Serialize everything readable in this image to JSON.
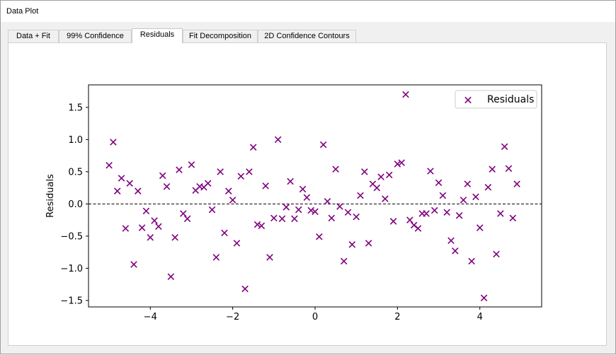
{
  "window": {
    "title": "Data Plot"
  },
  "tabs": [
    {
      "label": "Data + Fit",
      "active": false
    },
    {
      "label": "99% Confidence",
      "active": false
    },
    {
      "label": "Residuals",
      "active": true
    },
    {
      "label": "Fit Decomposition",
      "active": false
    },
    {
      "label": "2D Confidence Contours",
      "active": false
    }
  ],
  "colors": {
    "marker": "#800080",
    "accent": "#ffffff"
  },
  "chart_data": {
    "type": "scatter",
    "ylabel": "Residuals",
    "xlabel": "",
    "xlim": [
      -5.5,
      5.5
    ],
    "ylim": [
      -1.6,
      1.85
    ],
    "xticks": [
      -4,
      -2,
      0,
      2,
      4
    ],
    "xtick_labels": [
      "−4",
      "−2",
      "0",
      "2",
      "4"
    ],
    "yticks": [
      -1.5,
      -1.0,
      -0.5,
      0.0,
      0.5,
      1.0,
      1.5
    ],
    "ytick_labels": [
      "−1.5",
      "−1.0",
      "−0.5",
      "0.0",
      "0.5",
      "1.0",
      "1.5"
    ],
    "reference_line": {
      "y": 0,
      "style": "dashed"
    },
    "legend": {
      "position": "top-right",
      "entries": [
        "Residuals"
      ]
    },
    "grid": false,
    "series": [
      {
        "name": "Residuals",
        "marker": "x",
        "points": [
          [
            -5.0,
            0.6
          ],
          [
            -4.9,
            0.96
          ],
          [
            -4.8,
            0.2
          ],
          [
            -4.7,
            0.4
          ],
          [
            -4.6,
            -0.38
          ],
          [
            -4.5,
            0.32
          ],
          [
            -4.4,
            -0.94
          ],
          [
            -4.3,
            0.2
          ],
          [
            -4.2,
            -0.37
          ],
          [
            -4.1,
            -0.11
          ],
          [
            -4.0,
            -0.52
          ],
          [
            -3.9,
            -0.26
          ],
          [
            -3.8,
            -0.35
          ],
          [
            -3.7,
            0.44
          ],
          [
            -3.6,
            0.27
          ],
          [
            -3.5,
            -1.13
          ],
          [
            -3.4,
            -0.52
          ],
          [
            -3.3,
            0.53
          ],
          [
            -3.2,
            -0.15
          ],
          [
            -3.1,
            -0.23
          ],
          [
            -3.0,
            0.61
          ],
          [
            -2.9,
            0.21
          ],
          [
            -2.8,
            0.27
          ],
          [
            -2.7,
            0.26
          ],
          [
            -2.6,
            0.32
          ],
          [
            -2.5,
            -0.09
          ],
          [
            -2.4,
            -0.83
          ],
          [
            -2.3,
            0.5
          ],
          [
            -2.2,
            -0.45
          ],
          [
            -2.1,
            0.2
          ],
          [
            -2.0,
            0.06
          ],
          [
            -1.9,
            -0.61
          ],
          [
            -1.8,
            0.43
          ],
          [
            -1.7,
            -1.32
          ],
          [
            -1.6,
            0.5
          ],
          [
            -1.5,
            0.88
          ],
          [
            -1.4,
            -0.32
          ],
          [
            -1.3,
            -0.34
          ],
          [
            -1.2,
            0.28
          ],
          [
            -1.1,
            -0.83
          ],
          [
            -1.0,
            -0.22
          ],
          [
            -0.9,
            1.0
          ],
          [
            -0.8,
            -0.23
          ],
          [
            -0.7,
            -0.05
          ],
          [
            -0.6,
            0.35
          ],
          [
            -0.5,
            -0.23
          ],
          [
            -0.4,
            -0.09
          ],
          [
            -0.3,
            0.23
          ],
          [
            -0.2,
            0.1
          ],
          [
            -0.1,
            -0.1
          ],
          [
            0.0,
            -0.12
          ],
          [
            0.1,
            -0.51
          ],
          [
            0.2,
            0.92
          ],
          [
            0.3,
            0.04
          ],
          [
            0.4,
            -0.22
          ],
          [
            0.5,
            0.54
          ],
          [
            0.6,
            -0.04
          ],
          [
            0.7,
            -0.89
          ],
          [
            0.8,
            -0.13
          ],
          [
            0.9,
            -0.63
          ],
          [
            1.0,
            -0.2
          ],
          [
            1.1,
            0.13
          ],
          [
            1.2,
            0.5
          ],
          [
            1.3,
            -0.61
          ],
          [
            1.4,
            0.31
          ],
          [
            1.5,
            0.25
          ],
          [
            1.6,
            0.42
          ],
          [
            1.7,
            0.08
          ],
          [
            1.8,
            0.45
          ],
          [
            1.9,
            -0.27
          ],
          [
            2.0,
            0.62
          ],
          [
            2.1,
            0.64
          ],
          [
            2.2,
            1.7
          ],
          [
            2.3,
            -0.25
          ],
          [
            2.4,
            -0.33
          ],
          [
            2.5,
            -0.38
          ],
          [
            2.6,
            -0.15
          ],
          [
            2.7,
            -0.15
          ],
          [
            2.8,
            0.51
          ],
          [
            2.9,
            -0.1
          ],
          [
            3.0,
            0.33
          ],
          [
            3.1,
            0.13
          ],
          [
            3.2,
            -0.13
          ],
          [
            3.3,
            -0.57
          ],
          [
            3.4,
            -0.73
          ],
          [
            3.5,
            -0.18
          ],
          [
            3.6,
            0.06
          ],
          [
            3.7,
            0.31
          ],
          [
            3.8,
            -0.89
          ],
          [
            3.9,
            0.11
          ],
          [
            4.0,
            -0.37
          ],
          [
            4.1,
            -1.46
          ],
          [
            4.2,
            0.26
          ],
          [
            4.3,
            0.54
          ],
          [
            4.4,
            -0.78
          ],
          [
            4.5,
            -0.15
          ],
          [
            4.6,
            0.89
          ],
          [
            4.7,
            0.55
          ],
          [
            4.8,
            -0.22
          ],
          [
            4.9,
            0.31
          ]
        ]
      }
    ]
  }
}
